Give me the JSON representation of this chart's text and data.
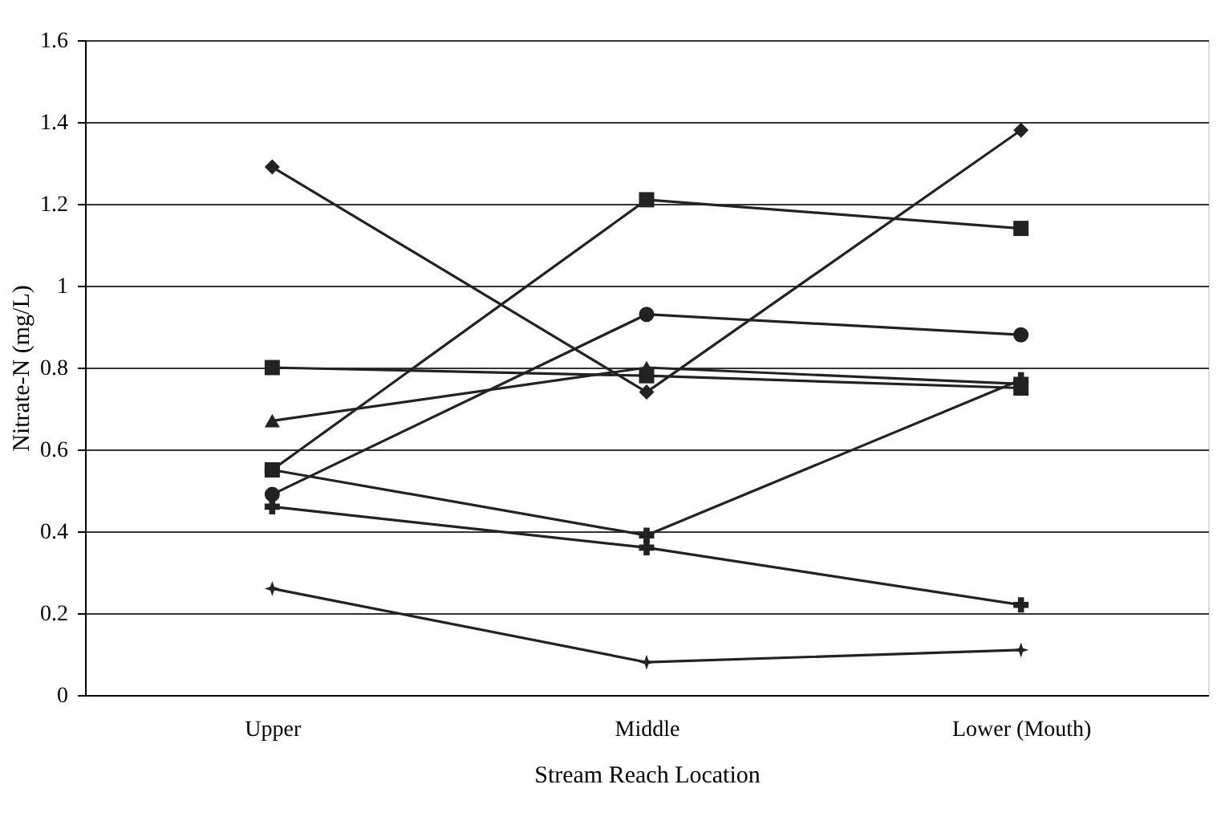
{
  "chart_data": {
    "type": "line",
    "xlabel": "Stream Reach Location",
    "ylabel": "Nitrate-N (mg/L)",
    "categories": [
      "Upper",
      "Middle",
      "Lower (Mouth)"
    ],
    "series": [
      {
        "color": "#222222",
        "marker": "cross",
        "values": [
          0.55,
          0.39,
          0.77
        ]
      },
      {
        "color": "#222222",
        "marker": "diamond",
        "values": [
          1.29,
          0.74,
          1.38
        ]
      },
      {
        "color": "#222222",
        "marker": "square",
        "values": [
          0.55,
          1.21,
          1.14
        ]
      },
      {
        "color": "#222222",
        "marker": "circle",
        "values": [
          0.49,
          0.93,
          0.88
        ]
      },
      {
        "color": "#222222",
        "marker": "square",
        "values": [
          0.8,
          0.78,
          0.75
        ]
      },
      {
        "color": "#222222",
        "marker": "triangle",
        "values": [
          0.67,
          0.8,
          0.76
        ]
      },
      {
        "color": "#222222",
        "marker": "cross",
        "values": [
          0.46,
          0.36,
          0.22
        ]
      },
      {
        "color": "#222222",
        "marker": "star",
        "values": [
          0.26,
          0.08,
          0.11
        ]
      }
    ],
    "ylim": [
      0,
      1.6
    ],
    "yticks": [
      0,
      0.2,
      0.4,
      0.6,
      0.8,
      1,
      1.2,
      1.4,
      1.6
    ],
    "grid": "y"
  }
}
